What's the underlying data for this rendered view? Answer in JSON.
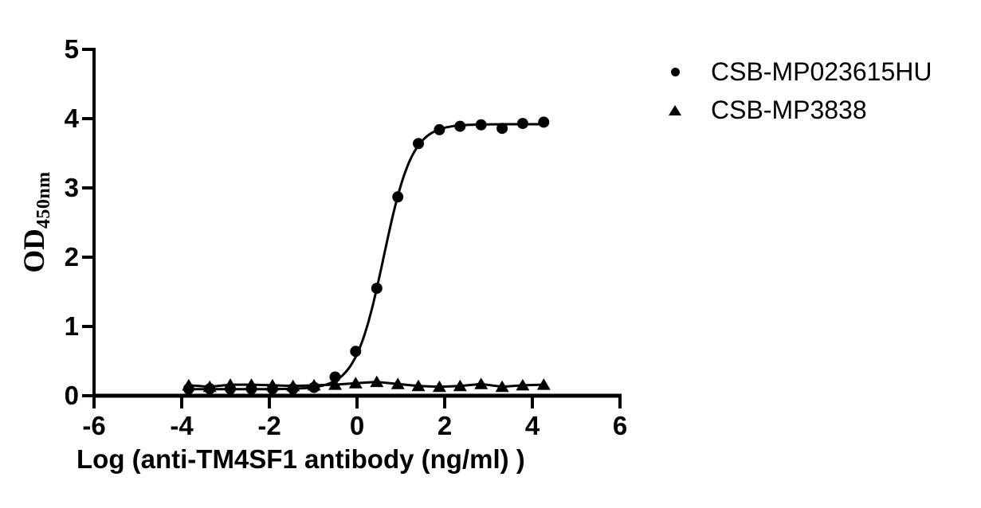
{
  "chart_data": {
    "type": "scatter",
    "title": "",
    "xlabel": "Log (anti-TM4SF1 antibody (ng/ml) )",
    "ylabel": "OD450nm",
    "ylabel_main": "OD",
    "ylabel_sub": "450nm",
    "xlim": [
      -6,
      6
    ],
    "ylim": [
      0,
      5
    ],
    "x_ticks": [
      -6,
      -4,
      -2,
      0,
      2,
      4,
      6
    ],
    "y_ticks": [
      0,
      1,
      2,
      3,
      4,
      5
    ],
    "grid": false,
    "legend_position": "top-right",
    "ink_color": "#000000",
    "x": [
      -3.84,
      -3.36,
      -2.89,
      -2.41,
      -1.93,
      -1.46,
      -0.98,
      -0.5,
      -0.03,
      0.45,
      0.93,
      1.4,
      1.88,
      2.35,
      2.83,
      3.31,
      3.78,
      4.26
    ],
    "series": [
      {
        "name": "CSB-MP023615HU",
        "marker": "circle",
        "values": [
          0.1,
          0.1,
          0.1,
          0.1,
          0.1,
          0.1,
          0.12,
          0.27,
          0.64,
          1.55,
          2.87,
          3.64,
          3.84,
          3.89,
          3.91,
          3.86,
          3.93,
          3.95
        ],
        "fit": {
          "type": "4pl",
          "bottom": 0.095,
          "top": 3.92,
          "logec50": 0.61,
          "hill": 1.34
        }
      },
      {
        "name": "CSB-MP3838",
        "marker": "triangle",
        "values": [
          0.15,
          0.13,
          0.16,
          0.16,
          0.15,
          0.14,
          0.15,
          0.16,
          0.18,
          0.2,
          0.17,
          0.14,
          0.13,
          0.14,
          0.17,
          0.13,
          0.15,
          0.16
        ],
        "fit": {
          "type": "line"
        }
      }
    ]
  }
}
